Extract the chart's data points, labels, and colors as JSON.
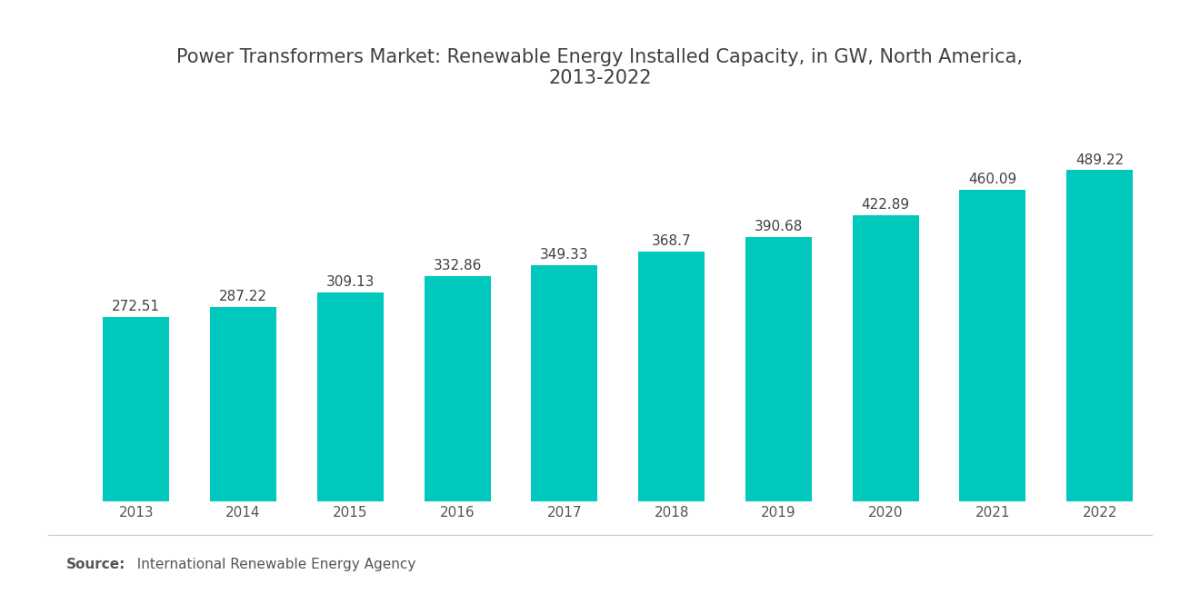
{
  "title": "Power Transformers Market: Renewable Energy Installed Capacity, in GW, North America,\n2013-2022",
  "years": [
    2013,
    2014,
    2015,
    2016,
    2017,
    2018,
    2019,
    2020,
    2021,
    2022
  ],
  "values": [
    272.51,
    287.22,
    309.13,
    332.86,
    349.33,
    368.7,
    390.68,
    422.89,
    460.09,
    489.22
  ],
  "bar_color": "#00C8BC",
  "background_color": "#FFFFFF",
  "title_fontsize": 15,
  "label_fontsize": 11,
  "tick_fontsize": 11,
  "source_fontsize": 11,
  "ylim": [
    0,
    580
  ],
  "bar_width": 0.62,
  "title_color": "#404040",
  "tick_color": "#555555",
  "label_color": "#404040",
  "source_bold": "Source:",
  "source_normal": "  International Renewable Energy Agency",
  "source_color": "#555555"
}
